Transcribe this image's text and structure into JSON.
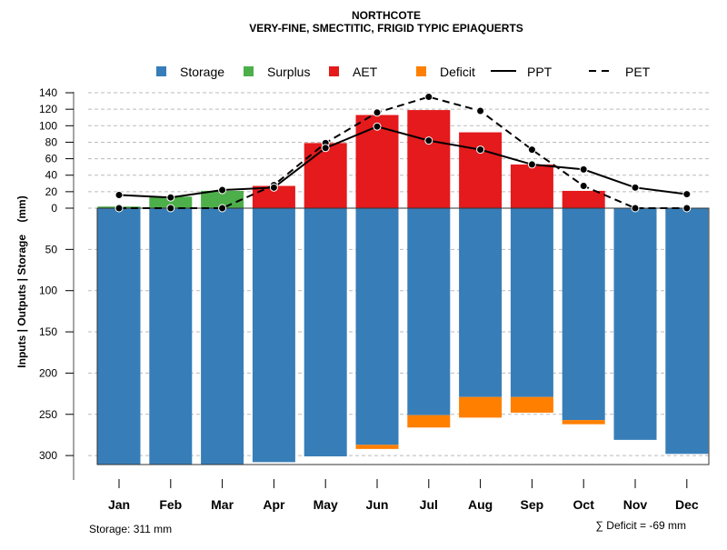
{
  "chart_data": {
    "type": "bar",
    "title": "NORTHCOTE",
    "subtitle": "VERY-FINE, SMECTITIC, FRIGID TYPIC EPIAQUERTS",
    "ylabel": "Inputs | Outputs | Storage    (mm)",
    "xlabel": "",
    "categories": [
      "Jan",
      "Feb",
      "Mar",
      "Apr",
      "May",
      "Jun",
      "Jul",
      "Aug",
      "Sep",
      "Oct",
      "Nov",
      "Dec"
    ],
    "upper_ticks": [
      "0",
      "20",
      "40",
      "60",
      "80",
      "100",
      "120",
      "140"
    ],
    "lower_ticks": [
      "50",
      "100",
      "150",
      "200",
      "250",
      "300"
    ],
    "ylim_upper": [
      0,
      140
    ],
    "ylim_lower": [
      0,
      311
    ],
    "grid": true,
    "legend_position": "top",
    "legend": [
      {
        "label": "Storage",
        "kind": "box",
        "color": "#377EB8"
      },
      {
        "label": "Surplus",
        "kind": "box",
        "color": "#4DAF4A"
      },
      {
        "label": "AET",
        "kind": "box",
        "color": "#E41A1C"
      },
      {
        "label": "Deficit",
        "kind": "box",
        "color": "#FF7F00"
      },
      {
        "label": "PPT",
        "kind": "solid"
      },
      {
        "label": "PET",
        "kind": "dashed"
      }
    ],
    "series": [
      {
        "name": "Storage",
        "values": [
          311,
          311,
          311,
          308,
          301,
          287,
          251,
          229,
          229,
          257,
          281,
          298
        ]
      },
      {
        "name": "Surplus",
        "values": [
          2,
          14,
          21,
          0,
          0,
          0,
          0,
          0,
          0,
          0,
          0,
          0
        ]
      },
      {
        "name": "AET",
        "values": [
          0,
          0,
          0,
          27,
          79,
          113,
          119,
          92,
          53,
          21,
          0,
          0
        ]
      },
      {
        "name": "Deficit",
        "values": [
          0,
          0,
          0,
          0,
          0,
          5,
          15,
          25,
          19,
          5,
          0,
          0
        ]
      },
      {
        "name": "PPT",
        "values": [
          16,
          13,
          22,
          25,
          73,
          99,
          82,
          71,
          53,
          47,
          25,
          17
        ]
      },
      {
        "name": "PET",
        "values": [
          0,
          0,
          0,
          28,
          79,
          116,
          135,
          118,
          71,
          27,
          0,
          0
        ]
      }
    ],
    "annotations": {
      "storage": "Storage: 311 mm",
      "deficit": "∑ Deficit = -69 mm"
    }
  }
}
